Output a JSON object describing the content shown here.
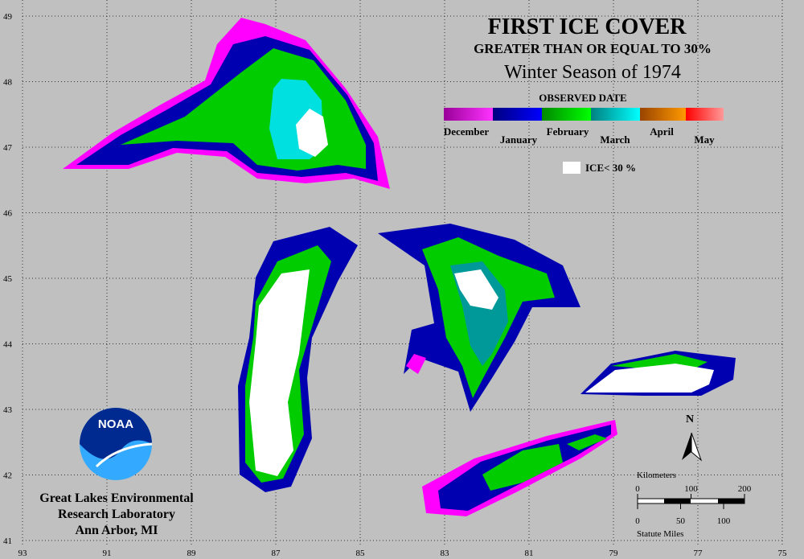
{
  "map": {
    "title": "FIRST ICE COVER",
    "subtitle": "GREATER THAN OR EQUAL TO 30%",
    "season": "Winter Season of 1974",
    "legend_title": "OBSERVED DATE",
    "legend_months": [
      "December",
      "January",
      "February",
      "March",
      "April",
      "May"
    ],
    "ice_label": "ICE< 30 %",
    "latitudes": [
      49,
      48,
      47,
      46,
      45,
      44,
      43,
      42,
      41
    ],
    "longitudes": [
      93,
      91,
      89,
      87,
      85,
      83,
      81,
      79,
      77,
      75
    ],
    "lat_range": [
      49,
      41
    ],
    "lon_range": [
      93,
      75
    ],
    "scale": {
      "kilometers_label": "Kilometers",
      "km_range": [
        0,
        200
      ],
      "km_ticks": [
        0,
        100,
        200
      ],
      "miles_label": "Statute Miles",
      "mile_range": [
        0,
        124.3
      ],
      "mile_ticks": [
        0,
        50,
        100
      ]
    },
    "north": "N",
    "logo": "NOAA",
    "lab": [
      "Great Lakes Environmental",
      "Research Laboratory",
      "Ann Arbor, MI"
    ]
  }
}
